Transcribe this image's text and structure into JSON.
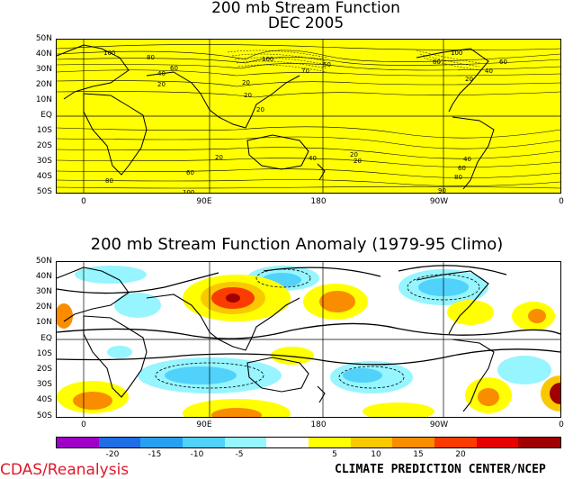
{
  "top_panel": {
    "title_line1": "200 mb Stream Function",
    "title_line2": "DEC 2005",
    "background": "#ffff00",
    "contour_labels": [
      "100",
      "80",
      "60",
      "40",
      "20",
      "20",
      "20",
      "20",
      "20",
      "20",
      "40",
      "60",
      "80",
      "100",
      "100",
      "70",
      "50",
      "100",
      "80",
      "60",
      "40",
      "20",
      "20",
      "40",
      "60",
      "80",
      "90"
    ]
  },
  "bottom_panel": {
    "title": "200 mb Stream Function Anomaly (1979-95 Climo)"
  },
  "lat_labels": [
    "50N",
    "40N",
    "30N",
    "20N",
    "10N",
    "EQ",
    "10S",
    "20S",
    "30S",
    "40S",
    "50S"
  ],
  "lon_labels": [
    "0",
    "90E",
    "180",
    "90W",
    "0"
  ],
  "colorbar": {
    "labels": [
      "-20",
      "-15",
      "-10",
      "-5",
      "5",
      "10",
      "15",
      "20"
    ],
    "colors": [
      "#a000c8",
      "#1e6ee6",
      "#28a0f0",
      "#50d2fa",
      "#96f5ff",
      "#ffffff",
      "#ffff00",
      "#fac800",
      "#fa8c00",
      "#fa3c00",
      "#e60000",
      "#a00000"
    ]
  },
  "footer": {
    "left": "CDAS/Reanalysis",
    "right": "CLIMATE PREDICTION CENTER/NCEP"
  }
}
